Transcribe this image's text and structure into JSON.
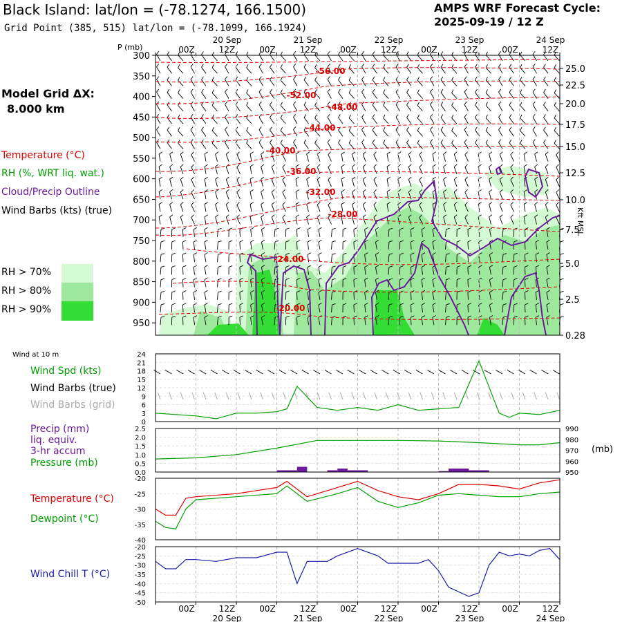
{
  "header": {
    "title": "Black Island:  lat/lon = (-78.1274, 166.1500)",
    "subtitle": "Grid Point (385, 515) lat/lon = (-78.1099, 166.1924)",
    "cycle_line1": "AMPS WRF Forecast Cycle:",
    "cycle_line2": "2025-09-19 / 12  Z"
  },
  "legend": {
    "grid_title": "Model Grid ΔX:",
    "grid_value": "8.000 km",
    "temperature": "Temperature (°C)",
    "rh": "RH (%, WRT liq. wat.)",
    "cloud": "Cloud/Precip Outline",
    "wind": "Wind Barbs (kts) (true)",
    "rh70": "RH > 70%",
    "rh80": "RH > 80%",
    "rh90": "RH > 90%",
    "wind10": "Wind at 10 m",
    "wind_spd": "Wind Spd (kts)",
    "wind_barbs_true": "Wind Barbs (true)",
    "wind_barbs_grid": "Wind Barbs (grid)",
    "precip1": "Precip (mm)",
    "precip2": "liq. equiv.",
    "precip3": "3-hr accum",
    "pressure": "Pressure (mb)",
    "temp2": "Temperature (°C)",
    "dewpoint": "Dewpoint (°C)",
    "windchill": "Wind Chill T (°C)",
    "p_unit": "P (mb)",
    "kft": "Kft MSL",
    "mb_unit": "(mb)"
  },
  "colors": {
    "temperature": "#dd0000",
    "rh": "#00a000",
    "cloud": "#6a1a9a",
    "wind_grid": "#aaaaaa",
    "windchill": "#1a1aaa",
    "rh70": "#d3fad3",
    "rh80": "#9ee89e",
    "rh90": "#33dd33"
  },
  "chart_data": [
    {
      "type": "heatmap",
      "name": "time-height cross section",
      "x_tick_labels": [
        "00Z",
        "12Z",
        "00Z",
        "12Z",
        "00Z",
        "12Z",
        "00Z",
        "12Z",
        "00Z",
        "12Z"
      ],
      "date_labels": [
        "20 Sep",
        "21 Sep",
        "22 Sep",
        "23 Sep",
        "24 Sep"
      ],
      "x_range_hours": [
        0,
        120
      ],
      "pressure_ticks": [
        300,
        350,
        400,
        450,
        500,
        550,
        600,
        650,
        700,
        750,
        800,
        850,
        900,
        950
      ],
      "height_ticks": [
        "25.0",
        "22.5",
        "20.0",
        "17.5",
        "15.0",
        "12.5",
        "10.0",
        "7.5",
        "5.0",
        "2.5",
        "0.28"
      ],
      "temperature_contour_labels": [
        "-56.00",
        "-52.00",
        "-48.00",
        "-44.00",
        "-40.00",
        "-36.00",
        "-32.00",
        "-28.00",
        "-24.00",
        "-20.00"
      ]
    },
    {
      "type": "line",
      "name": "10 m wind speed",
      "y_ticks": [
        "24",
        "21",
        "18",
        "15",
        "12",
        "9",
        "6",
        "3",
        "0"
      ],
      "ylim": [
        0,
        24
      ],
      "x_hours": [
        0,
        6,
        12,
        18,
        24,
        30,
        36,
        39,
        42,
        48,
        54,
        60,
        66,
        72,
        78,
        84,
        90,
        96,
        102,
        105,
        108,
        114,
        120
      ],
      "values": [
        3,
        2.5,
        2,
        1,
        3,
        3,
        3.5,
        4.5,
        12.5,
        5,
        4,
        5,
        4,
        6,
        4,
        4.5,
        5,
        21.5,
        3,
        1.5,
        3,
        2.5,
        4
      ]
    },
    {
      "type": "line",
      "name": "precip and pressure",
      "precip_y_ticks": [
        "2.5",
        "2.0",
        "1.5",
        "1.0",
        "0.5",
        "0.0"
      ],
      "pressure_y_ticks": [
        "990",
        "980",
        "970",
        "960",
        "950"
      ],
      "pressure_ylim": [
        950,
        990
      ],
      "x_hours": [
        0,
        12,
        24,
        36,
        48,
        60,
        72,
        84,
        96,
        108,
        114,
        120
      ],
      "pressure": [
        962,
        963,
        966,
        972,
        979,
        979,
        979,
        978.5,
        977,
        975,
        975,
        977
      ],
      "precip_bars": [
        {
          "start_hour": 36,
          "end_hour": 42,
          "value": 0.1
        },
        {
          "start_hour": 42,
          "end_hour": 45,
          "value": 0.3
        },
        {
          "start_hour": 51,
          "end_hour": 54,
          "value": 0.1
        },
        {
          "start_hour": 54,
          "end_hour": 57,
          "value": 0.2
        },
        {
          "start_hour": 57,
          "end_hour": 63,
          "value": 0.1
        },
        {
          "start_hour": 84,
          "end_hour": 87,
          "value": 0.05
        },
        {
          "start_hour": 87,
          "end_hour": 93,
          "value": 0.2
        },
        {
          "start_hour": 93,
          "end_hour": 99,
          "value": 0.1
        }
      ]
    },
    {
      "type": "line",
      "name": "temperature and dewpoint",
      "y_ticks": [
        "-20",
        "-25",
        "-30",
        "-35",
        "-40"
      ],
      "ylim": [
        -40,
        -20
      ],
      "series": [
        {
          "name": "Temperature",
          "x_hours": [
            0,
            3,
            6,
            9,
            12,
            24,
            36,
            39,
            45,
            54,
            60,
            66,
            72,
            78,
            84,
            90,
            96,
            102,
            108,
            114,
            120
          ],
          "values": [
            -30,
            -32,
            -32,
            -26.5,
            -26,
            -25,
            -23,
            -21,
            -26,
            -23,
            -21,
            -24,
            -26,
            -27,
            -25,
            -22,
            -22,
            -22.5,
            -23.5,
            -21.5,
            -20.5
          ]
        },
        {
          "name": "Dewpoint",
          "x_hours": [
            0,
            3,
            6,
            9,
            12,
            24,
            36,
            39,
            45,
            54,
            60,
            66,
            72,
            78,
            84,
            90,
            96,
            102,
            108,
            114,
            120
          ],
          "values": [
            -34,
            -36,
            -36.5,
            -30,
            -27,
            -26,
            -25,
            -22.5,
            -27.5,
            -25,
            -23,
            -27.5,
            -29.5,
            -28,
            -25.5,
            -25,
            -25.5,
            -26,
            -26,
            -25,
            -24.5
          ]
        }
      ]
    },
    {
      "type": "line",
      "name": "wind chill",
      "y_ticks": [
        "-20",
        "-25",
        "-30",
        "-35",
        "-40",
        "-45",
        "-50"
      ],
      "ylim": [
        -50,
        -20
      ],
      "x_hours": [
        0,
        3,
        6,
        9,
        12,
        18,
        24,
        30,
        36,
        39,
        42,
        45,
        51,
        54,
        60,
        66,
        69,
        72,
        78,
        81,
        84,
        87,
        93,
        96,
        99,
        102,
        105,
        108,
        111,
        114,
        117,
        120
      ],
      "values": [
        -28,
        -32,
        -32,
        -27,
        -27,
        -28,
        -26,
        -26,
        -23,
        -23,
        -40,
        -28,
        -28,
        -25,
        -21,
        -25,
        -29,
        -29,
        -29,
        -27,
        -33,
        -42,
        -47,
        -45,
        -30,
        -23,
        -25,
        -24,
        -25,
        -22,
        -21,
        -27
      ]
    }
  ]
}
